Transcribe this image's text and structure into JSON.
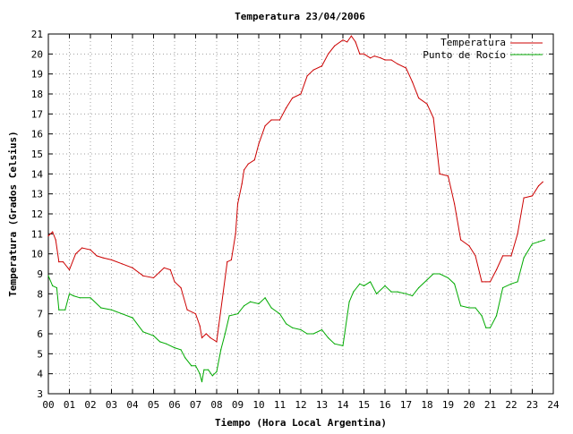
{
  "chart_data": {
    "type": "line",
    "title": "Temperatura 23/04/2006",
    "xlabel": "Tiempo (Hora Local Argentina)",
    "ylabel": "Temperatura (Grados Celsius)",
    "xlim": [
      0,
      24
    ],
    "ylim": [
      3,
      21
    ],
    "x_ticks": [
      "00",
      "01",
      "02",
      "03",
      "04",
      "05",
      "06",
      "07",
      "08",
      "09",
      "10",
      "11",
      "12",
      "13",
      "14",
      "15",
      "16",
      "17",
      "18",
      "19",
      "20",
      "21",
      "22",
      "23",
      "24"
    ],
    "y_ticks": [
      "3",
      "4",
      "5",
      "6",
      "7",
      "8",
      "9",
      "10",
      "11",
      "12",
      "13",
      "14",
      "15",
      "16",
      "17",
      "18",
      "19",
      "20",
      "21"
    ],
    "grid": true,
    "legend_position": "top-right",
    "series": [
      {
        "name": "Temperatura",
        "color": "#cc0000",
        "x": [
          0.0,
          0.2,
          0.35,
          0.5,
          0.7,
          1.0,
          1.3,
          1.6,
          2.0,
          2.3,
          2.6,
          3.0,
          3.5,
          4.0,
          4.5,
          5.0,
          5.3,
          5.5,
          5.8,
          6.0,
          6.3,
          6.6,
          7.0,
          7.2,
          7.3,
          7.5,
          7.7,
          8.0,
          8.1,
          8.3,
          8.5,
          8.7,
          8.9,
          9.0,
          9.2,
          9.3,
          9.5,
          9.8,
          10.0,
          10.3,
          10.6,
          11.0,
          11.3,
          11.6,
          12.0,
          12.3,
          12.6,
          13.0,
          13.3,
          13.6,
          14.0,
          14.2,
          14.4,
          14.6,
          14.8,
          15.0,
          15.3,
          15.5,
          15.8,
          16.0,
          16.3,
          16.6,
          17.0,
          17.3,
          17.6,
          18.0,
          18.3,
          18.6,
          19.0,
          19.3,
          19.6,
          20.0,
          20.3,
          20.6,
          20.8,
          21.0,
          21.3,
          21.6,
          22.0,
          22.3,
          22.6,
          23.0,
          23.3,
          23.5
        ],
        "y": [
          10.9,
          11.1,
          10.7,
          9.6,
          9.6,
          9.2,
          10.0,
          10.3,
          10.2,
          9.9,
          9.8,
          9.7,
          9.5,
          9.3,
          8.9,
          8.8,
          9.1,
          9.3,
          9.2,
          8.6,
          8.3,
          7.2,
          7.0,
          6.4,
          5.8,
          6.0,
          5.8,
          5.6,
          6.4,
          8.0,
          9.6,
          9.7,
          11.0,
          12.5,
          13.5,
          14.2,
          14.5,
          14.7,
          15.5,
          16.4,
          16.7,
          16.7,
          17.3,
          17.8,
          18.0,
          18.9,
          19.2,
          19.4,
          20.0,
          20.4,
          20.7,
          20.6,
          20.9,
          20.6,
          20.0,
          20.0,
          19.8,
          19.9,
          19.8,
          19.7,
          19.7,
          19.5,
          19.3,
          18.6,
          17.8,
          17.5,
          16.8,
          14.0,
          13.9,
          12.5,
          10.7,
          10.4,
          9.9,
          8.6,
          8.6,
          8.6,
          9.2,
          9.9,
          9.9,
          11.0,
          12.8,
          12.9,
          13.4,
          13.6
        ]
      },
      {
        "name": "Punto de Rocío",
        "color": "#00aa00",
        "x": [
          0.0,
          0.2,
          0.4,
          0.5,
          0.8,
          1.0,
          1.2,
          1.5,
          2.0,
          2.5,
          3.0,
          3.5,
          4.0,
          4.5,
          5.0,
          5.3,
          5.6,
          6.0,
          6.3,
          6.5,
          6.8,
          7.0,
          7.2,
          7.3,
          7.4,
          7.6,
          7.8,
          8.0,
          8.2,
          8.4,
          8.6,
          9.0,
          9.3,
          9.6,
          10.0,
          10.3,
          10.6,
          11.0,
          11.3,
          11.6,
          12.0,
          12.3,
          12.6,
          13.0,
          13.3,
          13.6,
          14.0,
          14.3,
          14.5,
          14.8,
          15.0,
          15.3,
          15.6,
          16.0,
          16.3,
          16.6,
          17.0,
          17.3,
          17.6,
          18.0,
          18.3,
          18.6,
          19.0,
          19.3,
          19.6,
          20.0,
          20.3,
          20.6,
          20.8,
          21.0,
          21.3,
          21.6,
          22.0,
          22.3,
          22.6,
          23.0,
          23.3,
          23.6
        ],
        "y": [
          8.9,
          8.4,
          8.3,
          7.2,
          7.2,
          8.0,
          7.9,
          7.8,
          7.8,
          7.3,
          7.2,
          7.0,
          6.8,
          6.1,
          5.9,
          5.6,
          5.5,
          5.3,
          5.2,
          4.8,
          4.4,
          4.4,
          4.0,
          3.6,
          4.2,
          4.2,
          3.9,
          4.1,
          5.2,
          6.0,
          6.9,
          7.0,
          7.4,
          7.6,
          7.5,
          7.8,
          7.3,
          7.0,
          6.5,
          6.3,
          6.2,
          6.0,
          6.0,
          6.2,
          5.8,
          5.5,
          5.4,
          7.6,
          8.1,
          8.5,
          8.4,
          8.6,
          8.0,
          8.4,
          8.1,
          8.1,
          8.0,
          7.9,
          8.3,
          8.7,
          9.0,
          9.0,
          8.8,
          8.5,
          7.4,
          7.3,
          7.3,
          6.9,
          6.3,
          6.3,
          6.9,
          8.3,
          8.5,
          8.6,
          9.8,
          10.5,
          10.6,
          10.7
        ]
      }
    ]
  }
}
